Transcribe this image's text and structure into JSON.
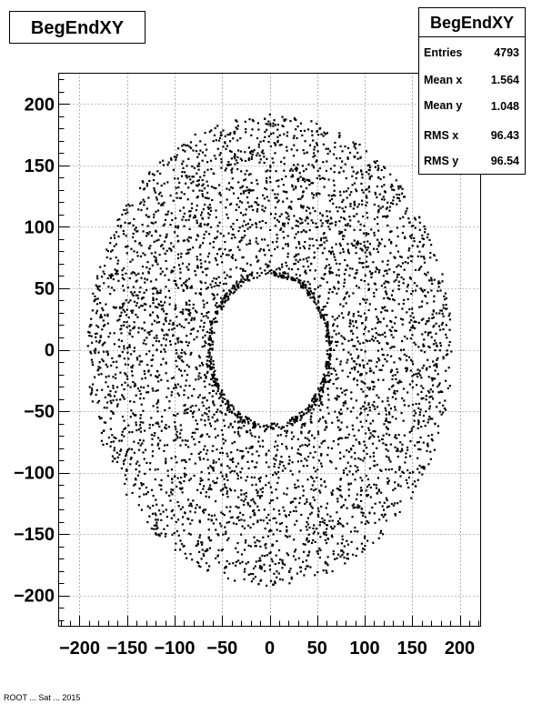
{
  "title": "BegEndXY",
  "stats": {
    "header": "BegEndXY",
    "rows": [
      {
        "label": "Entries",
        "value": "4793"
      },
      {
        "label": "Mean x",
        "value": "1.564"
      },
      {
        "label": "Mean y",
        "value": "1.048"
      },
      {
        "label": "RMS x",
        "value": "96.43"
      },
      {
        "label": "RMS y",
        "value": "96.54"
      }
    ]
  },
  "footer": "ROOT ... Sat ... 2015",
  "chart_data": {
    "type": "scatter",
    "title": "BegEndXY",
    "xlabel": "",
    "ylabel": "",
    "xlim": [
      -222,
      222
    ],
    "ylim": [
      -225,
      225
    ],
    "x_ticks": [
      -200,
      -150,
      -100,
      -50,
      0,
      50,
      100,
      150,
      200
    ],
    "x_tick_labels": [
      "−200",
      "−150",
      "−100",
      "−50",
      "0",
      "50",
      "100",
      "150",
      "200"
    ],
    "y_ticks": [
      -200,
      -150,
      -100,
      -50,
      0,
      50,
      100,
      150,
      200
    ],
    "y_tick_labels": [
      "−200",
      "−150",
      "−100",
      "−50",
      "0",
      "50",
      "100",
      "150",
      "200"
    ],
    "grid": true,
    "entries": 4793,
    "distribution": {
      "shape": "annulus",
      "inner_radius": 60,
      "outer_radius_x": 192,
      "outer_radius_y": 192,
      "center": [
        1.564,
        1.048
      ]
    },
    "marker_color": "#000000"
  }
}
